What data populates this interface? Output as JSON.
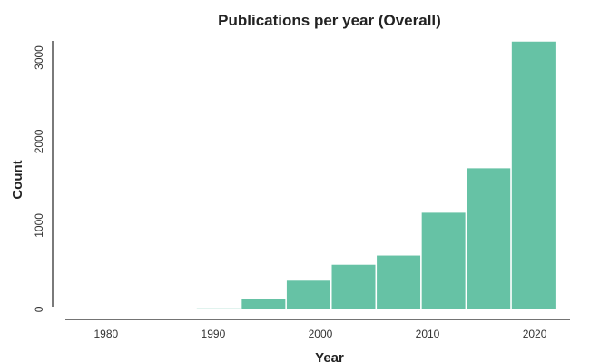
{
  "chart_data": {
    "type": "bar",
    "title": "Publications per year (Overall)",
    "xlabel": "Year",
    "ylabel": "Count",
    "bins": [
      {
        "start": 1980.0,
        "end": 1984.2,
        "value": 0
      },
      {
        "start": 1984.2,
        "end": 1988.4,
        "value": 8
      },
      {
        "start": 1988.4,
        "end": 1992.6,
        "value": 20
      },
      {
        "start": 1992.6,
        "end": 1996.8,
        "value": 135
      },
      {
        "start": 1996.8,
        "end": 2001.0,
        "value": 350
      },
      {
        "start": 2001.0,
        "end": 2005.2,
        "value": 540
      },
      {
        "start": 2005.2,
        "end": 2009.4,
        "value": 650
      },
      {
        "start": 2009.4,
        "end": 2013.6,
        "value": 1160
      },
      {
        "start": 2013.6,
        "end": 2017.8,
        "value": 1690
      },
      {
        "start": 2017.8,
        "end": 2022.0,
        "value": 3200
      }
    ],
    "x_ticks": [
      1980,
      1990,
      2000,
      2010,
      2020
    ],
    "y_ticks": [
      0,
      1000,
      2000,
      3000
    ],
    "xlim": [
      1976.2,
      2023.3
    ],
    "ylim": [
      -120,
      3200
    ],
    "bar_color": "#66c2a5",
    "grid": false
  }
}
